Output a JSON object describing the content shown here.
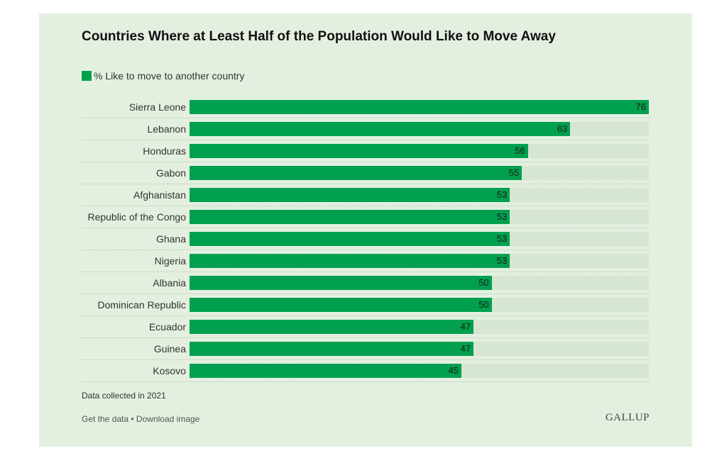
{
  "chart_data": {
    "type": "bar",
    "orientation": "horizontal",
    "title": "Countries Where at Least Half of the Population Would Like to Move Away",
    "legend": [
      "% Like to move to another country"
    ],
    "legend_position": "top-left",
    "categories": [
      "Sierra Leone",
      "Lebanon",
      "Honduras",
      "Gabon",
      "Afghanistan",
      "Republic of the Congo",
      "Ghana",
      "Nigeria",
      "Albania",
      "Dominican Republic",
      "Ecuador",
      "Guinea",
      "Kosovo"
    ],
    "series": [
      {
        "name": "% Like to move to another country",
        "values": [
          76,
          63,
          56,
          55,
          53,
          53,
          53,
          53,
          50,
          50,
          47,
          47,
          45
        ]
      }
    ],
    "xlim": [
      0,
      76
    ],
    "grid": false
  },
  "colors": {
    "bar": "#00a04e",
    "track": "#d6e6d2",
    "background": "#e3f0e0"
  },
  "footer": {
    "note": "Data collected in 2021",
    "get_data": "Get the data",
    "separator": " • ",
    "download": "Download image",
    "brand": "GALLUP"
  }
}
